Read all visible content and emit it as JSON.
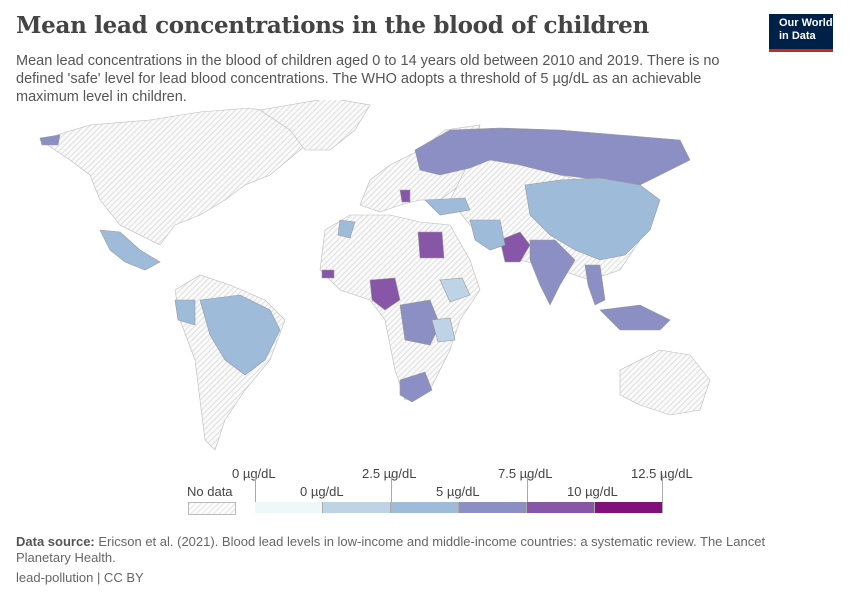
{
  "title": "Mean lead concentrations in the blood of children",
  "subtitle": "Mean lead concentrations in the blood of children aged 0 to 14 years old between 2010 and 2019. There is no defined 'safe' level for lead blood concentrations. The WHO adopts a threshold of 5 µg/dL as an achievable maximum level in children.",
  "logo": {
    "line1": "Our World",
    "line2": "in Data"
  },
  "legend": {
    "no_data": "No data",
    "upper_labels": [
      "0 µg/dL",
      "2.5 µg/dL",
      "7.5 µg/dL",
      "12.5 µg/dL"
    ],
    "lower_labels": [
      "0 µg/dL",
      "5 µg/dL",
      "10 µg/dL"
    ],
    "bin_colors": [
      "#eef8f9",
      "#bfd3e6",
      "#9ebcda",
      "#8c8fc4",
      "#8856a7",
      "#810f7c"
    ]
  },
  "map": {
    "no_data_color": "#f2f2f2",
    "border_color": "#bbbbbb"
  },
  "footer": {
    "source_label": "Data source:",
    "source_text": " Ericson et al. (2021). Blood lead levels in low-income and middle-income countries: a systematic review. The Lancet Planetary Health.",
    "license": "lead-pollution | CC BY"
  }
}
